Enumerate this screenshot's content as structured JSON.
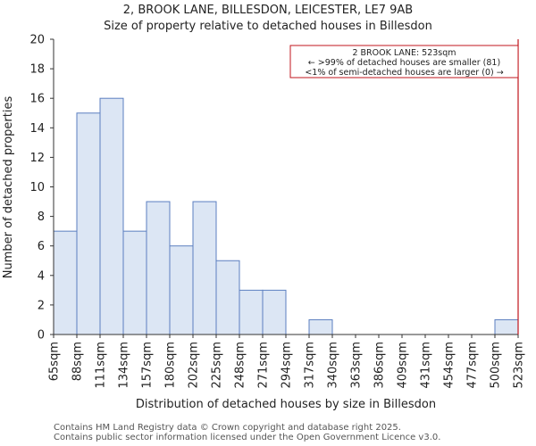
{
  "chart_data": {
    "type": "bar",
    "title": "2, BROOK LANE, BILLESDON, LEICESTER, LE7 9AB",
    "subtitle": "Size of property relative to detached houses in Billesdon",
    "xlabel": "Distribution of detached houses by size in Billesdon",
    "ylabel": "Number of detached properties",
    "ylim": [
      0,
      20
    ],
    "yticks": [
      0,
      2,
      4,
      6,
      8,
      10,
      12,
      14,
      16,
      18,
      20
    ],
    "bin_edges": [
      65,
      88,
      111,
      134,
      157,
      180,
      202,
      225,
      248,
      271,
      294,
      317,
      340,
      363,
      386,
      409,
      431,
      454,
      477,
      500,
      523
    ],
    "xtick_labels": [
      "65sqm",
      "88sqm",
      "111sqm",
      "134sqm",
      "157sqm",
      "180sqm",
      "202sqm",
      "225sqm",
      "248sqm",
      "271sqm",
      "294sqm",
      "317sqm",
      "340sqm",
      "363sqm",
      "386sqm",
      "409sqm",
      "431sqm",
      "454sqm",
      "477sqm",
      "500sqm",
      "523sqm"
    ],
    "values": [
      7,
      15,
      16,
      7,
      9,
      6,
      9,
      5,
      3,
      3,
      0,
      1,
      0,
      0,
      0,
      0,
      0,
      0,
      0,
      1
    ],
    "bar_color": "#dce6f4",
    "bar_edge_color": "#5b7fc0",
    "marker": {
      "x": 523,
      "color": "#c0141c",
      "annotation": [
        "2 BROOK LANE: 523sqm",
        "← >99% of detached houses are smaller (81)",
        "<1% of semi-detached houses are larger (0) →"
      ]
    },
    "grid": false
  },
  "footer": {
    "line1": "Contains HM Land Registry data © Crown copyright and database right 2025.",
    "line2": "Contains public sector information licensed under the Open Government Licence v3.0."
  }
}
